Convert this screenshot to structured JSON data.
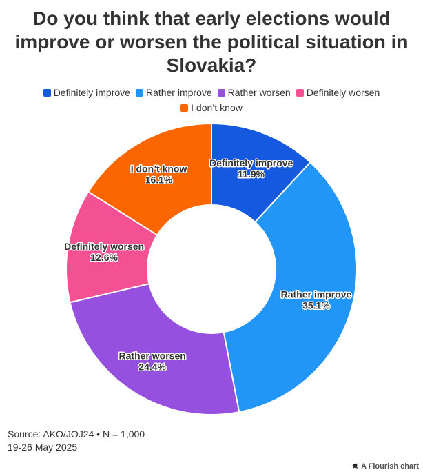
{
  "title": "Do you think that early elections would improve or worsen the political situation in Slovakia?",
  "chart_data": {
    "type": "pie",
    "variant": "donut",
    "title": "Do you think that early elections would improve or worsen the political situation in Slovakia?",
    "categories": [
      "Definitely improve",
      "Rather improve",
      "Rather worsen",
      "Definitely worsen",
      "I don’t know"
    ],
    "values": [
      11.9,
      35.1,
      24.4,
      12.6,
      16.1
    ],
    "value_labels": [
      "11.9%",
      "35.1%",
      "24.4%",
      "12.6%",
      "16.1%"
    ],
    "unit": "%",
    "colors": [
      "#1559df",
      "#2196f7",
      "#9650e0",
      "#f45195",
      "#fb6600"
    ],
    "legend_position": "top"
  },
  "legend": [
    {
      "label": "Definitely improve",
      "color": "#1559df"
    },
    {
      "label": "Rather improve",
      "color": "#2196f7"
    },
    {
      "label": "Rather worsen",
      "color": "#9650e0"
    },
    {
      "label": "Definitely worsen",
      "color": "#f45195"
    },
    {
      "label": "I don’t know",
      "color": "#fb6600"
    }
  ],
  "footer": {
    "source": "Source: AKO/JOJ24 • N = 1,000",
    "date": "19-26 May 2025"
  },
  "credit": {
    "text": "A Flourish chart",
    "icon": "flourish-logo-icon"
  }
}
